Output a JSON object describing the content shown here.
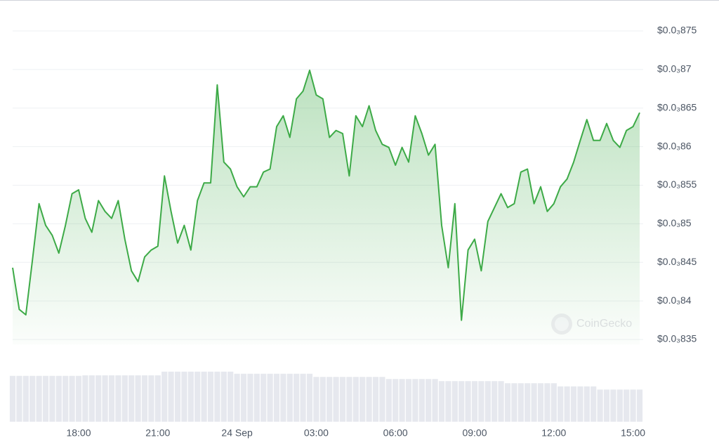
{
  "chart_data": {
    "type": "line",
    "color": "#3daa47",
    "watermark": "CoinGecko",
    "categories": [
      null,
      null,
      null,
      null,
      null,
      null,
      null,
      null,
      null,
      null,
      "18:00",
      null,
      null,
      null,
      null,
      null,
      null,
      null,
      null,
      null,
      null,
      null,
      "21:00",
      null,
      null,
      null,
      null,
      null,
      null,
      null,
      null,
      null,
      null,
      null,
      "24 Sep",
      null,
      null,
      null,
      null,
      null,
      null,
      null,
      null,
      null,
      null,
      null,
      "03:00",
      null,
      null,
      null,
      null,
      null,
      null,
      null,
      null,
      null,
      null,
      null,
      "06:00",
      null,
      null,
      null,
      null,
      null,
      null,
      null,
      null,
      null,
      null,
      null,
      "09:00",
      null,
      null,
      null,
      null,
      null,
      null,
      null,
      null,
      null,
      null,
      null,
      "12:00",
      null,
      null,
      null,
      null,
      null,
      null,
      null,
      null,
      null,
      null,
      null,
      "15:00",
      null
    ],
    "values": [
      0.0008443,
      0.0008389,
      0.0008382,
      0.0008453,
      0.0008526,
      0.0008498,
      0.0008485,
      0.0008462,
      0.0008498,
      0.0008539,
      0.0008544,
      0.0008507,
      0.0008489,
      0.000853,
      0.0008516,
      0.0008507,
      0.000853,
      0.000848,
      0.0008439,
      0.0008425,
      0.0008457,
      0.0008466,
      0.0008471,
      0.0008562,
      0.0008516,
      0.0008475,
      0.0008498,
      0.0008466,
      0.000853,
      0.0008553,
      0.0008553,
      0.000868,
      0.000858,
      0.0008571,
      0.0008548,
      0.0008535,
      0.0008548,
      0.0008548,
      0.0008567,
      0.0008571,
      0.0008626,
      0.000864,
      0.0008612,
      0.0008662,
      0.0008672,
      0.0008699,
      0.0008667,
      0.0008662,
      0.0008612,
      0.0008621,
      0.0008617,
      0.0008562,
      0.000864,
      0.0008626,
      0.0008653,
      0.0008621,
      0.0008603,
      0.0008599,
      0.0008576,
      0.0008599,
      0.000858,
      0.000864,
      0.0008617,
      0.0008589,
      0.0008603,
      0.0008498,
      0.0008443,
      0.0008526,
      0.0008375,
      0.0008466,
      0.000848,
      0.0008439,
      0.0008503,
      0.0008521,
      0.0008539,
      0.0008521,
      0.0008526,
      0.0008567,
      0.0008571,
      0.0008526,
      0.0008548,
      0.0008516,
      0.0008526,
      0.0008548,
      0.0008558,
      0.000858,
      0.0008608,
      0.0008635,
      0.0008608,
      0.0008608,
      0.000863,
      0.0008608,
      0.0008599,
      0.0008621,
      0.0008626,
      0.0008644
    ],
    "ylim": [
      0.000835,
      0.000875
    ],
    "yticks": [
      {
        "value": 0.000875,
        "label": "$0.0₃875"
      },
      {
        "value": 0.00087,
        "label": "$0.0₃87"
      },
      {
        "value": 0.000865,
        "label": "$0.0₃865"
      },
      {
        "value": 0.00086,
        "label": "$0.0₃86"
      },
      {
        "value": 0.000855,
        "label": "$0.0₃855"
      },
      {
        "value": 0.00085,
        "label": "$0.0₃85"
      },
      {
        "value": 0.000845,
        "label": "$0.0₃845"
      },
      {
        "value": 0.00084,
        "label": "$0.0₃84"
      },
      {
        "value": 0.000835,
        "label": "$0.0₃835"
      }
    ],
    "grid": true,
    "volume": {
      "color": "#e6e8ee",
      "ylim": [
        0,
        100
      ],
      "values": [
        87,
        87,
        87,
        87,
        87,
        87,
        87,
        87,
        87,
        87,
        87,
        88,
        88,
        88,
        88,
        88,
        88,
        88,
        88,
        88,
        88,
        88,
        88,
        95,
        95,
        95,
        95,
        95,
        95,
        95,
        95,
        95,
        95,
        95,
        91,
        91,
        91,
        91,
        91,
        91,
        91,
        91,
        91,
        91,
        91,
        91,
        85,
        85,
        85,
        85,
        85,
        85,
        85,
        85,
        85,
        85,
        85,
        81,
        81,
        81,
        81,
        81,
        81,
        81,
        81,
        77,
        77,
        77,
        77,
        77,
        77,
        77,
        77,
        77,
        77,
        73,
        73,
        73,
        73,
        73,
        73,
        73,
        73,
        67,
        67,
        67,
        67,
        67,
        67,
        61,
        61,
        61,
        61,
        61,
        61,
        61
      ]
    }
  }
}
